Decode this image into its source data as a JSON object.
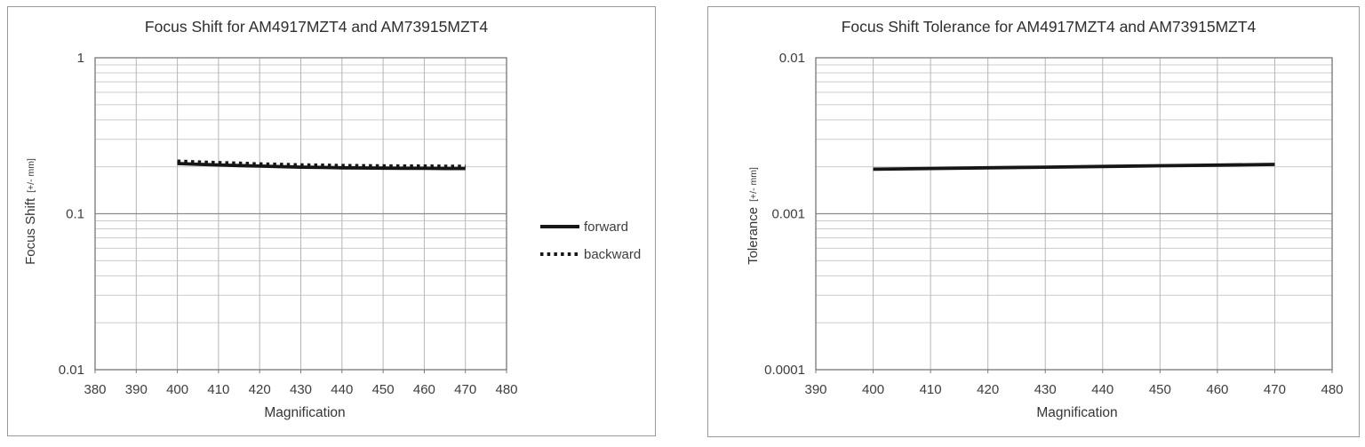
{
  "colors": {
    "series_line": "#161616",
    "grid_minor": "#cccccc",
    "grid_vertical": "#b5b5b5",
    "grid_major": "#8c8c8c",
    "plot_border": "#777777",
    "panel_border": "#9a9a9a",
    "text": "#3d3d3d",
    "background": "#ffffff"
  },
  "chart_data": [
    {
      "type": "line",
      "title": "Focus Shift for AM4917MZT4 and AM73915MZT4",
      "xlabel": "Magnification",
      "ylabel": "Focus Shift",
      "ylabel_unit": "[+/- mm]",
      "x_scale": "linear",
      "y_scale": "log",
      "xlim": [
        380,
        480
      ],
      "ylim": [
        0.01,
        1
      ],
      "x_ticks": [
        380,
        390,
        400,
        410,
        420,
        430,
        440,
        450,
        460,
        470,
        480
      ],
      "y_ticks": [
        1,
        0.1,
        0.01
      ],
      "y_tick_labels": [
        "1",
        "0.1",
        "0.01"
      ],
      "grid": "major+minor, log minors horizontal, verticals at every x tick",
      "legend_position": "right-outside",
      "series": [
        {
          "name": "forward",
          "line_style": "solid",
          "x": [
            400,
            405,
            410,
            415,
            420,
            425,
            430,
            435,
            440,
            445,
            450,
            455,
            460,
            465,
            470
          ],
          "y": [
            0.21,
            0.2075,
            0.2055,
            0.2035,
            0.202,
            0.2005,
            0.199,
            0.198,
            0.197,
            0.1965,
            0.196,
            0.1955,
            0.1955,
            0.195,
            0.195
          ]
        },
        {
          "name": "backward",
          "line_style": "dotted",
          "x": [
            400,
            405,
            410,
            415,
            420,
            425,
            430,
            435,
            440,
            445,
            450,
            455,
            460,
            465,
            470
          ],
          "y": [
            0.216,
            0.2135,
            0.2115,
            0.2095,
            0.2075,
            0.206,
            0.2045,
            0.2035,
            0.2025,
            0.202,
            0.2015,
            0.201,
            0.201,
            0.2005,
            0.2005
          ]
        }
      ]
    },
    {
      "type": "line",
      "title": "Focus Shift Tolerance for AM4917MZT4 and AM73915MZT4",
      "xlabel": "Magnification",
      "ylabel": "Tolerance",
      "ylabel_unit": "[+/- mm]",
      "x_scale": "linear",
      "y_scale": "log",
      "xlim": [
        390,
        480
      ],
      "ylim": [
        0.0001,
        0.01
      ],
      "x_ticks": [
        390,
        400,
        410,
        420,
        430,
        440,
        450,
        460,
        470,
        480
      ],
      "y_ticks": [
        0.01,
        0.001,
        0.0001
      ],
      "y_tick_labels": [
        "0.01",
        "0.001",
        "0.0001"
      ],
      "grid": "major+minor, log minors horizontal, verticals at every x tick",
      "legend_position": "none",
      "series": [
        {
          "name": "tolerance",
          "line_style": "solid",
          "x": [
            400,
            410,
            420,
            430,
            440,
            450,
            460,
            470
          ],
          "y": [
            0.00193,
            0.00195,
            0.00197,
            0.00199,
            0.00201,
            0.00203,
            0.00205,
            0.00207
          ]
        }
      ]
    }
  ]
}
